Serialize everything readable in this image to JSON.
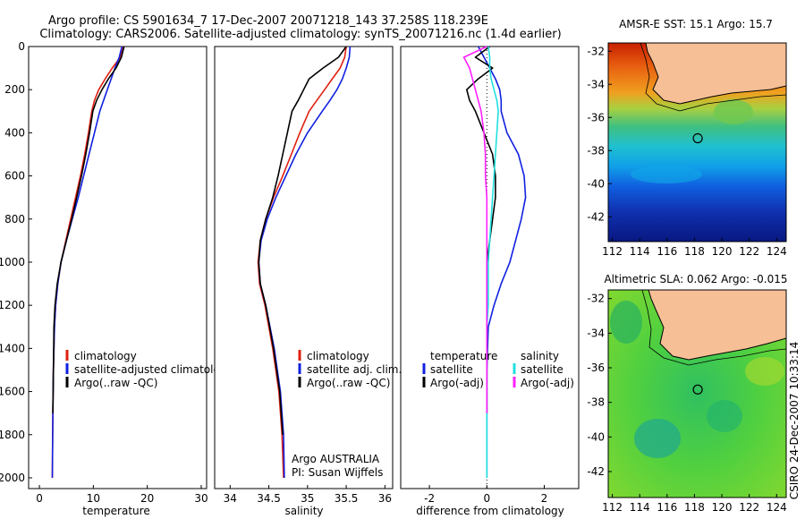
{
  "title_line1": "Argo profile: CS 5901634_7 17-Dec-2007 20071218_143 37.258S 118.239E",
  "title_line2": "Climatology: CARS2006. Satellite-adjusted climatology: synTS_20071216.nc (1.4d earlier)",
  "side_stamp": "CSIRO 24-Dec-2007 10:33:14",
  "colors": {
    "climatology": "#e02010",
    "satellite": "#1020e0",
    "argo": "#000000",
    "sat_salinity": "#20e0e0",
    "argo_salinity": "#ff20ff",
    "land": "#f6bf96"
  },
  "chart_data": [
    {
      "type": "line",
      "xlabel": "temperature",
      "xlim": [
        -2,
        31
      ],
      "xticks": [
        0,
        10,
        20,
        30
      ],
      "ylim": [
        2050,
        0
      ],
      "yticks": [
        0,
        200,
        400,
        600,
        800,
        1000,
        1200,
        1400,
        1600,
        1800,
        2000
      ],
      "legend": [
        "climatology",
        "satellite-adjusted climatology",
        "Argo(..raw -QC)"
      ],
      "series": [
        {
          "name": "climatology",
          "color": "#e02010",
          "x": [
            15.6,
            15.0,
            13.5,
            12.2,
            11.0,
            10.2,
            9.7,
            9.1,
            8.4,
            7.6,
            6.7,
            5.8,
            4.9,
            4.0,
            3.4,
            3.0,
            2.8,
            2.6,
            2.5,
            2.4
          ],
          "y": [
            0,
            50,
            100,
            150,
            200,
            250,
            300,
            400,
            500,
            600,
            700,
            800,
            900,
            1000,
            1100,
            1200,
            1300,
            1500,
            1700,
            2000
          ]
        },
        {
          "name": "satellite-adjusted climatology",
          "color": "#1020e0",
          "x": [
            15.3,
            14.8,
            14.0,
            13.3,
            12.6,
            11.9,
            11.2,
            10.2,
            9.2,
            8.2,
            7.2,
            6.1,
            5.0,
            4.0,
            3.4,
            3.0,
            2.8,
            2.6,
            2.5,
            2.4
          ],
          "y": [
            0,
            50,
            100,
            150,
            200,
            250,
            300,
            400,
            500,
            600,
            700,
            800,
            900,
            1000,
            1100,
            1200,
            1300,
            1500,
            1700,
            2000
          ]
        },
        {
          "name": "Argo(..raw -QC)",
          "color": "#000000",
          "x": [
            15.7,
            15.2,
            14.2,
            12.8,
            11.6,
            10.6,
            9.9,
            9.3,
            8.6,
            7.8,
            6.9,
            6.0,
            5.0,
            4.0,
            3.3,
            2.9,
            2.7,
            2.6,
            2.5
          ],
          "y": [
            0,
            50,
            100,
            150,
            200,
            250,
            300,
            400,
            500,
            600,
            700,
            800,
            900,
            1000,
            1100,
            1200,
            1300,
            1500,
            1700
          ]
        }
      ]
    },
    {
      "type": "line",
      "xlabel": "salinity",
      "xlim": [
        33.8,
        36.1
      ],
      "xticks": [
        34,
        34.5,
        35,
        35.5,
        36
      ],
      "ylim": [
        2050,
        0
      ],
      "legend": [
        "climatology",
        "satellite adj. clim.",
        "Argo(..raw -QC)"
      ],
      "annotation": [
        "Argo AUSTRALIA",
        "PI: Susan Wijffels"
      ],
      "series": [
        {
          "name": "climatology",
          "color": "#e02010",
          "x": [
            35.5,
            35.48,
            35.42,
            35.32,
            35.22,
            35.12,
            35.02,
            34.9,
            34.79,
            34.68,
            34.56,
            34.46,
            34.39,
            34.36,
            34.38,
            34.45,
            34.55,
            34.63,
            34.67,
            34.69
          ],
          "y": [
            0,
            50,
            100,
            150,
            200,
            250,
            300,
            400,
            500,
            600,
            700,
            800,
            900,
            1000,
            1100,
            1200,
            1400,
            1600,
            1800,
            2000
          ]
        },
        {
          "name": "satellite adj. clim.",
          "color": "#1020e0",
          "x": [
            35.55,
            35.54,
            35.5,
            35.45,
            35.38,
            35.29,
            35.19,
            35.0,
            34.85,
            34.72,
            34.59,
            34.48,
            34.4,
            34.37,
            34.39,
            34.46,
            34.57,
            34.65,
            34.69,
            34.7
          ],
          "y": [
            0,
            50,
            100,
            150,
            200,
            250,
            300,
            400,
            500,
            600,
            700,
            800,
            900,
            1000,
            1100,
            1200,
            1400,
            1600,
            1800,
            2000
          ]
        },
        {
          "name": "Argo(..raw -QC)",
          "color": "#000000",
          "x": [
            35.5,
            35.4,
            35.2,
            35.02,
            34.95,
            34.88,
            34.8,
            34.74,
            34.68,
            34.62,
            34.55,
            34.46,
            34.39,
            34.37,
            34.39,
            34.46,
            34.56,
            34.64,
            34.68
          ],
          "y": [
            0,
            50,
            100,
            150,
            200,
            250,
            300,
            400,
            500,
            600,
            700,
            800,
            900,
            1000,
            1100,
            1200,
            1400,
            1600,
            1800
          ]
        }
      ]
    },
    {
      "type": "line",
      "xlabel": "difference from climatology",
      "xlim": [
        -3,
        3.2
      ],
      "xticks": [
        -2,
        0,
        2
      ],
      "ylim": [
        2050,
        0
      ],
      "legend_groups": [
        {
          "header": "temperature",
          "items": [
            "satellite",
            "Argo(-adj)"
          ]
        },
        {
          "header": "salinity",
          "items": [
            "satellite",
            "Argo(-adj)"
          ]
        }
      ],
      "series": [
        {
          "name": "satellite",
          "group": "temperature",
          "color": "#1020e0",
          "x": [
            -0.3,
            -0.1,
            0.1,
            0.3,
            0.45,
            0.5,
            0.5,
            0.7,
            1.1,
            1.3,
            1.35,
            1.2,
            1.0,
            0.8,
            0.5,
            0.25,
            0.05,
            0.0,
            0.0,
            0.0
          ],
          "y": [
            0,
            50,
            100,
            150,
            200,
            250,
            300,
            400,
            500,
            600,
            700,
            800,
            900,
            1000,
            1100,
            1200,
            1300,
            1500,
            1700,
            2000
          ]
        },
        {
          "name": "Argo(-adj)",
          "group": "temperature",
          "color": "#000000",
          "x": [
            0.1,
            -0.4,
            0.2,
            -0.3,
            -0.7,
            -0.6,
            -0.4,
            -0.1,
            0.2,
            0.3,
            0.3,
            0.2,
            0.1,
            0.0,
            0.0,
            0.0,
            0.0,
            0.0,
            0.0
          ],
          "y": [
            0,
            50,
            100,
            150,
            200,
            250,
            300,
            400,
            500,
            600,
            700,
            800,
            900,
            1000,
            1100,
            1200,
            1300,
            1500,
            1700
          ]
        },
        {
          "name": "satellite",
          "group": "salinity",
          "color": "#20e0e0",
          "x": [
            0.05,
            0.1,
            0.1,
            0.15,
            0.25,
            0.35,
            0.4,
            0.35,
            0.3,
            0.25,
            0.2,
            0.15,
            0.1,
            0.05,
            0.05,
            0.05,
            0.0,
            0.0,
            0.0,
            0.0
          ],
          "y": [
            0,
            50,
            100,
            150,
            200,
            250,
            300,
            400,
            500,
            600,
            700,
            800,
            900,
            1000,
            1100,
            1200,
            1300,
            1500,
            1700,
            2000
          ]
        },
        {
          "name": "Argo(-adj)",
          "group": "salinity",
          "color": "#ff20ff",
          "x": [
            0.0,
            -0.8,
            -0.6,
            -0.5,
            -0.4,
            -0.3,
            -0.2,
            -0.1,
            -0.05,
            -0.05,
            0.0,
            0.0,
            0.0,
            0.0,
            0.0,
            0.0,
            0.0,
            0.0,
            0.0
          ],
          "y": [
            0,
            50,
            100,
            150,
            200,
            250,
            300,
            400,
            500,
            600,
            700,
            800,
            900,
            1000,
            1100,
            1200,
            1300,
            1500,
            1700
          ]
        }
      ]
    },
    {
      "type": "heatmap",
      "title": "AMSR-E SST: 15.1 Argo: 15.7",
      "xlim": [
        111.7,
        124.7
      ],
      "ylim": [
        -43.5,
        -31.5
      ],
      "xticks": [
        112,
        114,
        116,
        118,
        120,
        122,
        124
      ],
      "yticks": [
        -32,
        -34,
        -36,
        -38,
        -40,
        -42
      ],
      "marker": {
        "lon": 118.239,
        "lat": -37.258
      }
    },
    {
      "type": "heatmap",
      "title": "Altimetric SLA: 0.062 Argo: -0.015",
      "xlim": [
        111.7,
        124.7
      ],
      "ylim": [
        -43.5,
        -31.5
      ],
      "xticks": [
        112,
        114,
        116,
        118,
        120,
        122,
        124
      ],
      "yticks": [
        -32,
        -34,
        -36,
        -38,
        -40,
        -42
      ],
      "marker": {
        "lon": 118.239,
        "lat": -37.258
      }
    }
  ]
}
